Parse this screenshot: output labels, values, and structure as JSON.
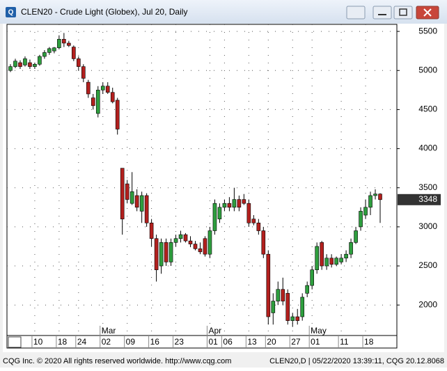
{
  "window": {
    "title": "CLEN20 - Crude Light (Globex), Jul 20, Daily"
  },
  "footer": {
    "left": "CQG Inc. © 2020 All rights reserved worldwide. http://www.cqg.com",
    "right": "CLEN20,D | 05/22/2020 13:39:11, CQG 20.12.8068"
  },
  "chart_data": {
    "type": "candlestick",
    "categories": [
      null,
      null,
      null,
      null,
      null,
      "10",
      null,
      null,
      null,
      null,
      "18",
      null,
      null,
      null,
      "24",
      null,
      null,
      null,
      null,
      "02",
      null,
      null,
      null,
      null,
      "09",
      null,
      null,
      null,
      null,
      "16",
      null,
      null,
      null,
      null,
      "23",
      null,
      null,
      null,
      null,
      null,
      null,
      "01",
      null,
      null,
      "06",
      null,
      null,
      null,
      null,
      "13",
      null,
      null,
      null,
      "20",
      null,
      null,
      null,
      null,
      "27",
      null,
      null,
      null,
      "01",
      null,
      null,
      null,
      null,
      null,
      "11",
      null,
      null,
      null,
      null,
      "18",
      null,
      null,
      null
    ],
    "months": [
      null,
      null,
      null,
      null,
      null,
      null,
      null,
      null,
      null,
      null,
      null,
      null,
      null,
      null,
      null,
      null,
      null,
      null,
      null,
      "Mar",
      null,
      null,
      null,
      null,
      null,
      null,
      null,
      null,
      null,
      null,
      null,
      null,
      null,
      null,
      null,
      null,
      null,
      null,
      null,
      null,
      null,
      "Apr",
      null,
      null,
      null,
      null,
      null,
      null,
      null,
      null,
      null,
      null,
      null,
      null,
      null,
      null,
      null,
      null,
      null,
      null,
      null,
      null,
      "May",
      null,
      null,
      null,
      null,
      null,
      null,
      null,
      null,
      null,
      null,
      null,
      null,
      null,
      null
    ],
    "open": [
      5000,
      5050,
      5100,
      5070,
      5100,
      5050,
      5080,
      5180,
      5230,
      5250,
      5290,
      5400,
      5350,
      5300,
      5150,
      5050,
      4850,
      4650,
      4450,
      4750,
      4800,
      4720,
      4620,
      3750,
      3550,
      3300,
      3400,
      3200,
      3400,
      3050,
      2850,
      2500,
      2800,
      2550,
      2800,
      2850,
      2900,
      2820,
      2780,
      2720,
      2850,
      2650,
      2950,
      3100,
      3250,
      3300,
      3250,
      3350,
      3350,
      3300,
      3100,
      3050,
      2950,
      2650,
      1900,
      2050,
      2200,
      2150,
      1800,
      1850,
      1850,
      2150,
      2250,
      2450,
      2800,
      2500,
      2600,
      2520,
      2550,
      2600,
      2650,
      2800,
      3000,
      3150,
      3250,
      3400,
      3420
    ],
    "high": [
      5080,
      5150,
      5130,
      5180,
      5140,
      5100,
      5200,
      5260,
      5300,
      5300,
      5450,
      5480,
      5380,
      5320,
      5180,
      5080,
      4880,
      4700,
      4800,
      4850,
      4850,
      4780,
      4650,
      3750,
      3600,
      3700,
      3480,
      3450,
      3430,
      3100,
      2900,
      2850,
      2850,
      2850,
      2900,
      2950,
      2920,
      2880,
      2820,
      2800,
      2880,
      3000,
      3350,
      3300,
      3350,
      3380,
      3500,
      3400,
      3420,
      3350,
      3150,
      3100,
      3000,
      2700,
      2150,
      2300,
      2350,
      2200,
      1900,
      1950,
      2150,
      2300,
      2500,
      2800,
      2820,
      2650,
      2650,
      2620,
      2650,
      2700,
      2850,
      3000,
      3250,
      3350,
      3450,
      3480,
      3430
    ],
    "low": [
      4980,
      5030,
      5020,
      5050,
      5020,
      5020,
      5060,
      5150,
      5200,
      5220,
      5270,
      5300,
      5300,
      5120,
      5000,
      4850,
      4650,
      4500,
      4400,
      4700,
      4700,
      4580,
      4180,
      2900,
      3300,
      3280,
      3200,
      3050,
      3000,
      2750,
      2300,
      2400,
      2500,
      2500,
      2750,
      2800,
      2800,
      2740,
      2700,
      2650,
      2620,
      2600,
      2900,
      3050,
      3200,
      3200,
      3200,
      3200,
      3280,
      3000,
      3020,
      2900,
      2600,
      1750,
      1750,
      2000,
      2000,
      1750,
      1720,
      1750,
      1800,
      2100,
      2200,
      2400,
      2450,
      2450,
      2480,
      2500,
      2520,
      2550,
      2600,
      2780,
      2950,
      3100,
      3150,
      3350,
      3050
    ],
    "close": [
      5050,
      5120,
      5050,
      5150,
      5050,
      5080,
      5180,
      5230,
      5280,
      5290,
      5400,
      5350,
      5320,
      5150,
      5050,
      4900,
      4700,
      4550,
      4750,
      4800,
      4720,
      4600,
      4250,
      3100,
      3350,
      3450,
      3250,
      3400,
      3050,
      2850,
      2450,
      2800,
      2550,
      2800,
      2850,
      2900,
      2820,
      2780,
      2720,
      2680,
      2650,
      2950,
      3300,
      3250,
      3300,
      3250,
      3350,
      3250,
      3300,
      3050,
      3050,
      2950,
      2650,
      1850,
      2050,
      2200,
      2050,
      1800,
      1850,
      1800,
      2100,
      2250,
      2450,
      2750,
      2500,
      2600,
      2520,
      2600,
      2600,
      2650,
      2800,
      2950,
      3200,
      3250,
      3400,
      3420,
      3348
    ],
    "up_color": "#2e9e3e",
    "down_color": "#b3201e",
    "ylim": [
      1610,
      5590
    ],
    "yticks": [
      2000,
      2500,
      3000,
      3500,
      4000,
      4500,
      5000,
      5500
    ],
    "grid": true
  }
}
